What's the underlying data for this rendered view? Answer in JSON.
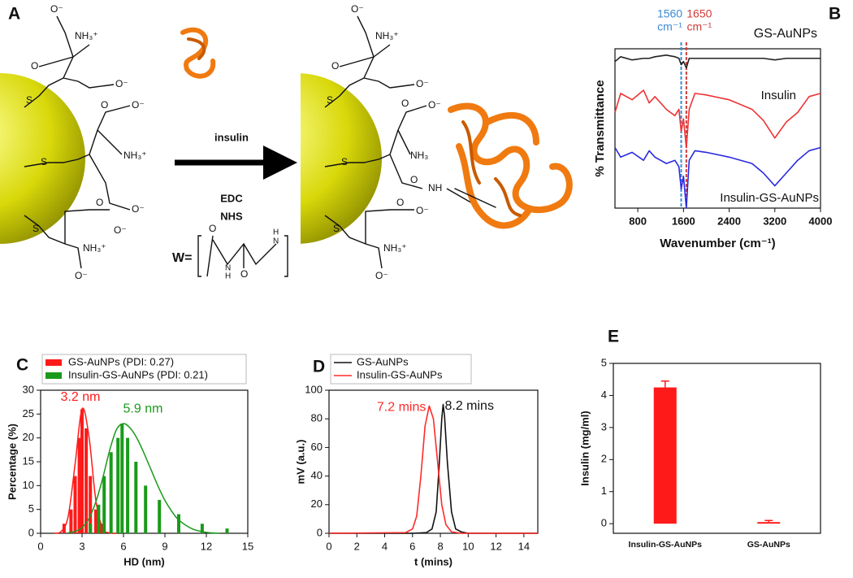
{
  "panel_labels": [
    "A",
    "B",
    "C",
    "D",
    "E"
  ],
  "diagram": {
    "reagent": "insulin",
    "conditions": [
      "EDC",
      "NHS"
    ],
    "left_labels": [
      "O⁻",
      "NH₃⁺",
      "O",
      "O⁻",
      "S",
      "O",
      "O⁻",
      "NH₃⁺",
      "S",
      "O⁻",
      "O",
      "S",
      "O⁻",
      "NH₃⁺",
      "O⁻"
    ],
    "right_labels": [
      "O⁻",
      "NH₃⁺",
      "O",
      "O⁻",
      "S",
      "O",
      "O⁻",
      "NH₃",
      "S",
      "O",
      "NH",
      "S",
      "O⁻",
      "O",
      "NH₃⁺",
      "O⁻"
    ],
    "linker_labels": [
      "W=",
      "O",
      "H",
      "N",
      "H",
      "N",
      "O"
    ]
  },
  "chart_data": [
    {
      "type": "line",
      "xlabel": "Wavenumber (cm⁻¹)",
      "ylabel": "% Transmittance",
      "xlim": [
        400,
        4000
      ],
      "xticks": [
        800,
        1600,
        2400,
        3200,
        4000
      ],
      "ylim": [
        0,
        100
      ],
      "legend": "inline",
      "x": [
        400,
        500,
        700,
        900,
        1000,
        1100,
        1300,
        1450,
        1520,
        1560,
        1600,
        1650,
        1700,
        1800,
        2000,
        2400,
        2800,
        3000,
        3200,
        3400,
        3600,
        3800,
        4000
      ],
      "series": [
        {
          "name": "GS-AuNPs",
          "color": "#222222",
          "values": [
            92,
            95,
            93,
            94,
            94,
            95,
            96,
            95,
            94,
            90,
            92,
            88,
            94,
            94,
            94,
            94,
            94,
            94,
            93,
            94,
            94,
            94,
            94
          ]
        },
        {
          "name": "Insulin",
          "color": "#ee3333",
          "values": [
            60,
            72,
            68,
            74,
            66,
            70,
            62,
            58,
            62,
            48,
            56,
            38,
            62,
            72,
            71,
            68,
            62,
            55,
            44,
            54,
            60,
            70,
            72
          ]
        },
        {
          "name": "Insulin-GS-AuNPs",
          "color": "#2a2ae0",
          "values": [
            38,
            32,
            35,
            30,
            36,
            32,
            28,
            30,
            26,
            12,
            20,
            0,
            30,
            36,
            35,
            32,
            28,
            22,
            14,
            22,
            30,
            36,
            38
          ]
        }
      ],
      "vlines": [
        {
          "x": 1560,
          "label": [
            "1560",
            "cm⁻¹"
          ],
          "color": "#3b8bd6"
        },
        {
          "x": 1650,
          "label": [
            "1650",
            "cm⁻¹"
          ],
          "color": "#d03a3a"
        }
      ]
    },
    {
      "type": "bar",
      "xlabel": "HD (nm)",
      "ylabel": "Percentage (%)",
      "xlim": [
        0,
        15
      ],
      "xticks": [
        0,
        3,
        6,
        9,
        12,
        15
      ],
      "ylim": [
        0,
        30
      ],
      "yticks": [
        0,
        5,
        10,
        15,
        20,
        25,
        30
      ],
      "legend": "above",
      "series": [
        {
          "name": "GS-AuNPs (PDI: 0.27)",
          "color": "#ff1a1a",
          "x": [
            1.7,
            2.2,
            2.5,
            2.8,
            3.0,
            3.3,
            3.6,
            4.0,
            4.4
          ],
          "values": [
            2,
            5,
            12,
            20,
            26,
            22,
            12,
            5,
            2
          ],
          "fit_x": [
            1,
            1.5,
            2,
            2.5,
            3,
            3.5,
            4,
            4.5,
            5,
            5.5
          ],
          "fit": [
            0.02,
            0.4,
            3.6,
            14.6,
            26.1,
            20.3,
            6.9,
            1.0,
            0.1,
            0
          ]
        },
        {
          "name": "Insulin-GS-AuNPs (PDI: 0.21)",
          "color": "#1a9a1a",
          "x": [
            3.6,
            4.2,
            4.6,
            5.1,
            5.6,
            5.9,
            6.3,
            6.9,
            7.6,
            8.6,
            10.0,
            11.7,
            13.5
          ],
          "values": [
            2,
            6,
            12,
            17,
            20,
            23,
            20,
            15,
            10,
            7,
            4,
            2,
            1
          ],
          "fit_x": [
            2,
            2.5,
            3,
            3.5,
            4,
            4.5,
            5,
            5.5,
            6,
            6.5,
            7,
            7.5,
            8,
            8.5,
            9,
            9.5,
            10,
            11,
            12,
            13
          ],
          "fit": [
            0.1,
            0.4,
            1.2,
            3.1,
            6.6,
            11.6,
            17.4,
            21.8,
            23.0,
            22.0,
            19.8,
            16.7,
            13.3,
            9.9,
            6.9,
            4.6,
            2.8,
            0.9,
            0.2,
            0
          ]
        }
      ],
      "annotations": [
        {
          "text": "3.2 nm",
          "color": "#ff1a1a"
        },
        {
          "text": "5.9 nm",
          "color": "#1a9a1a"
        }
      ]
    },
    {
      "type": "line",
      "xlabel": "t (mins)",
      "ylabel": "mV (a.u.)",
      "xlim": [
        0,
        15
      ],
      "xticks": [
        0,
        2,
        4,
        6,
        8,
        10,
        12,
        14
      ],
      "ylim": [
        0,
        100
      ],
      "yticks": [
        0,
        20,
        40,
        60,
        80,
        100
      ],
      "legend": "above",
      "series": [
        {
          "name": "GS-AuNPs",
          "color": "#111111",
          "x": [
            0,
            6,
            7,
            7.4,
            7.7,
            7.9,
            8.1,
            8.2,
            8.3,
            8.5,
            8.8,
            9.1,
            9.5,
            10,
            15
          ],
          "values": [
            0,
            0,
            0.5,
            3,
            15,
            45,
            80,
            90,
            82,
            50,
            15,
            3,
            1,
            0,
            0
          ]
        },
        {
          "name": "Insulin-GS-AuNPs",
          "color": "#ff2a2a",
          "x": [
            0,
            5.5,
            6,
            6.3,
            6.6,
            6.9,
            7.2,
            7.5,
            7.8,
            8.1,
            8.4,
            8.8,
            9.5,
            15
          ],
          "values": [
            0,
            0.5,
            3,
            12,
            40,
            75,
            89,
            80,
            50,
            20,
            6,
            1,
            0,
            0
          ]
        }
      ],
      "annotations": [
        {
          "text": "8.2 mins",
          "color": "#111111"
        },
        {
          "text": "7.2 mins",
          "color": "#ff2a2a"
        }
      ]
    },
    {
      "type": "bar",
      "ylabel": "Insulin (mg/ml)",
      "categories": [
        "Insulin-GS-AuNPs",
        "GS-AuNPs"
      ],
      "values": [
        4.25,
        0.05
      ],
      "errors": [
        0.2,
        0.05
      ],
      "color": "#ff1a1a",
      "ylim": [
        -0.3,
        5
      ],
      "yticks": [
        0,
        1,
        2,
        3,
        4,
        5
      ]
    }
  ]
}
